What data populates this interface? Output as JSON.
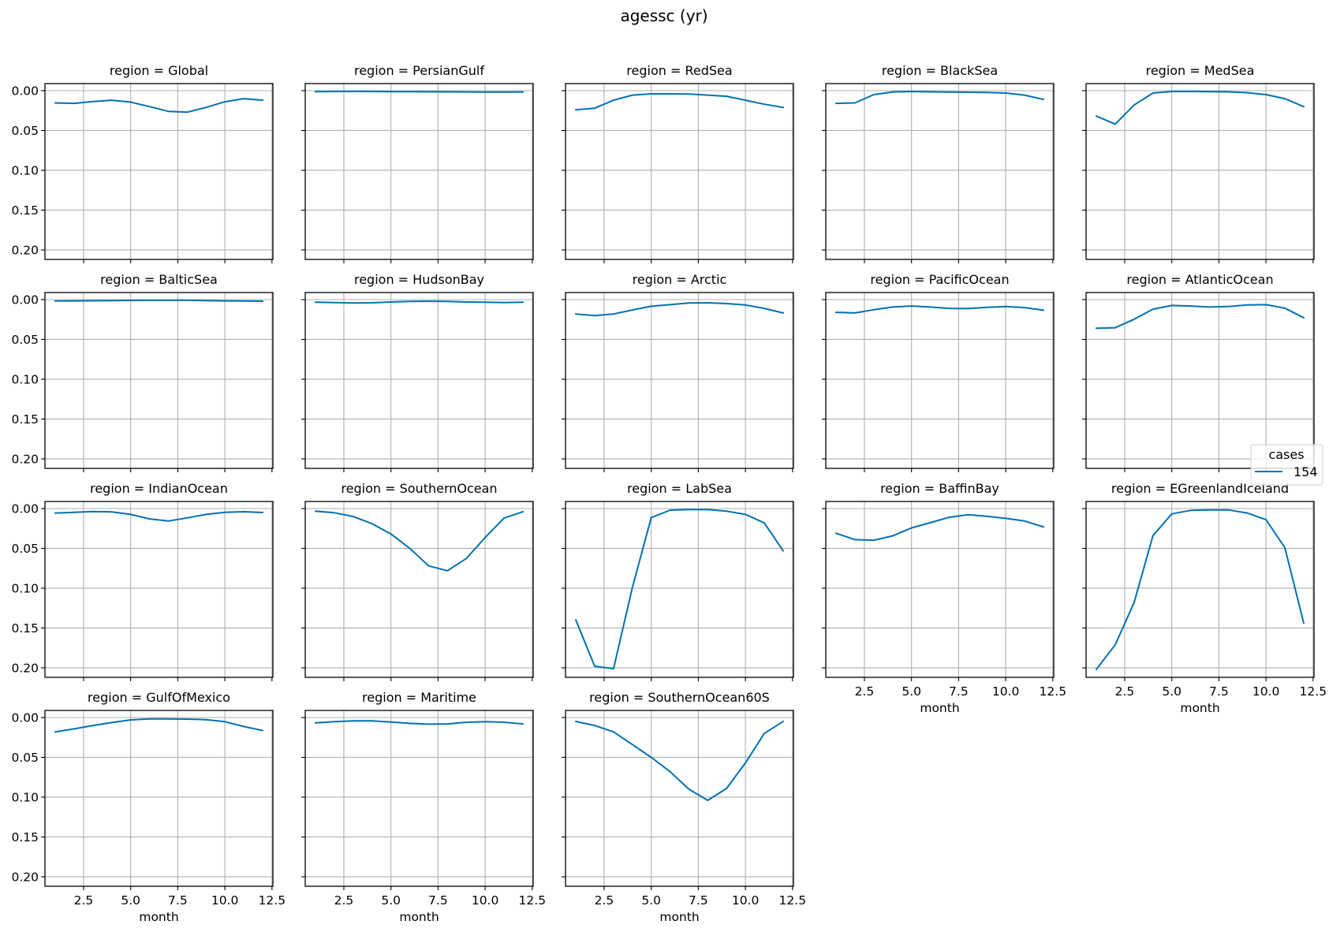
{
  "chart_data": {
    "type": "line",
    "title": "agessc (yr)",
    "layout": {
      "rows": 4,
      "cols": 5,
      "sharex": true,
      "sharey": true,
      "grid": true,
      "yaxis_inverted": true
    },
    "xlabel": "month",
    "ylabel": "",
    "xlim": [
      0.45,
      12.55
    ],
    "ylim": [
      -0.0089,
      0.2119
    ],
    "xticks": [
      2.5,
      5.0,
      7.5,
      10.0,
      12.5
    ],
    "xtick_labels": [
      "2.5",
      "5.0",
      "7.5",
      "10.0",
      "12.5"
    ],
    "yticks": [
      0.0,
      0.05,
      0.1,
      0.15,
      0.2
    ],
    "ytick_labels": [
      "0.00",
      "0.05",
      "0.10",
      "0.15",
      "0.20"
    ],
    "x": [
      1,
      2,
      3,
      4,
      5,
      6,
      7,
      8,
      9,
      10,
      11,
      12
    ],
    "legend": {
      "title": "cases",
      "position": "center right",
      "entries": [
        {
          "label": "154",
          "color": "#0072b2"
        }
      ]
    },
    "panels": [
      {
        "title": "region = Global",
        "series": [
          {
            "name": "154",
            "values": [
              0.0154,
              0.016,
              0.0137,
              0.012,
              0.0144,
              0.02,
              0.026,
              0.027,
              0.021,
              0.014,
              0.01,
              0.012
            ]
          }
        ]
      },
      {
        "title": "region = PersianGulf",
        "series": [
          {
            "name": "154",
            "values": [
              0.0012,
              0.001,
              0.0009,
              0.001,
              0.0012,
              0.0013,
              0.0014,
              0.0015,
              0.0016,
              0.0017,
              0.0018,
              0.0016
            ]
          }
        ]
      },
      {
        "title": "region = RedSea",
        "series": [
          {
            "name": "154",
            "values": [
              0.024,
              0.022,
              0.012,
              0.0056,
              0.004,
              0.004,
              0.0042,
              0.0056,
              0.007,
              0.012,
              0.017,
              0.021
            ]
          }
        ]
      },
      {
        "title": "region = BlackSea",
        "series": [
          {
            "name": "154",
            "values": [
              0.016,
              0.0154,
              0.005,
              0.0016,
              0.001,
              0.0015,
              0.0018,
              0.002,
              0.0022,
              0.003,
              0.0056,
              0.011
            ]
          }
        ]
      },
      {
        "title": "region = MedSea",
        "series": [
          {
            "name": "154",
            "values": [
              0.032,
              0.042,
              0.018,
              0.003,
              0.001,
              0.001,
              0.0012,
              0.0015,
              0.0025,
              0.005,
              0.01,
              0.02
            ]
          }
        ]
      },
      {
        "title": "region = BalticSea",
        "series": [
          {
            "name": "154",
            "values": [
              0.0018,
              0.0016,
              0.0014,
              0.0012,
              0.001,
              0.0008,
              0.0007,
              0.0008,
              0.0012,
              0.0016,
              0.0018,
              0.002
            ]
          }
        ]
      },
      {
        "title": "region = HudsonBay",
        "series": [
          {
            "name": "154",
            "values": [
              0.0033,
              0.0037,
              0.0043,
              0.004,
              0.003,
              0.0022,
              0.002,
              0.0023,
              0.003,
              0.0033,
              0.0037,
              0.0033
            ]
          }
        ]
      },
      {
        "title": "region = Arctic",
        "series": [
          {
            "name": "154",
            "values": [
              0.018,
              0.02,
              0.018,
              0.013,
              0.0083,
              0.0063,
              0.0043,
              0.004,
              0.005,
              0.0067,
              0.011,
              0.0167
            ]
          }
        ]
      },
      {
        "title": "region = PacificOcean",
        "series": [
          {
            "name": "154",
            "values": [
              0.016,
              0.0167,
              0.0127,
              0.0093,
              0.008,
              0.0093,
              0.011,
              0.0113,
              0.0097,
              0.0087,
              0.01,
              0.0133
            ]
          }
        ]
      },
      {
        "title": "region = AtlanticOcean",
        "series": [
          {
            "name": "154",
            "values": [
              0.036,
              0.0353,
              0.0247,
              0.012,
              0.0073,
              0.008,
              0.0093,
              0.0087,
              0.0067,
              0.0063,
              0.0107,
              0.0227
            ]
          }
        ]
      },
      {
        "title": "region = IndianOcean",
        "series": [
          {
            "name": "154",
            "values": [
              0.0057,
              0.0047,
              0.0037,
              0.0043,
              0.0073,
              0.013,
              0.0157,
              0.0117,
              0.0073,
              0.0047,
              0.004,
              0.005
            ]
          }
        ]
      },
      {
        "title": "region = SouthernOcean",
        "series": [
          {
            "name": "154",
            "values": [
              0.0033,
              0.0053,
              0.01,
              0.019,
              0.032,
              0.05,
              0.072,
              0.078,
              0.0627,
              0.0363,
              0.012,
              0.004
            ]
          }
        ]
      },
      {
        "title": "region = LabSea",
        "series": [
          {
            "name": "154",
            "values": [
              0.14,
              0.198,
              0.201,
              0.099,
              0.0113,
              0.002,
              0.0013,
              0.0013,
              0.0033,
              0.0073,
              0.018,
              0.053
            ]
          }
        ]
      },
      {
        "title": "region = BaffinBay",
        "series": [
          {
            "name": "154",
            "values": [
              0.031,
              0.039,
              0.0397,
              0.0343,
              0.0243,
              0.0177,
              0.011,
              0.0077,
              0.0097,
              0.0123,
              0.0157,
              0.023
            ]
          }
        ]
      },
      {
        "title": "region = EGreenlandIceland",
        "series": [
          {
            "name": "154",
            "values": [
              0.2017,
              0.171,
              0.118,
              0.034,
              0.0066,
              0.0023,
              0.0017,
              0.0017,
              0.0056,
              0.014,
              0.049,
              0.1436
            ]
          }
        ]
      },
      {
        "title": "region = GulfOfMexico",
        "series": [
          {
            "name": "154",
            "values": [
              0.018,
              0.0143,
              0.01,
              0.0063,
              0.003,
              0.0017,
              0.0017,
              0.002,
              0.0027,
              0.0053,
              0.0113,
              0.0163
            ]
          }
        ]
      },
      {
        "title": "region = Maritime",
        "series": [
          {
            "name": "154",
            "values": [
              0.0067,
              0.0053,
              0.0043,
              0.0043,
              0.0057,
              0.0073,
              0.0083,
              0.008,
              0.006,
              0.0053,
              0.006,
              0.008
            ]
          }
        ]
      },
      {
        "title": "region = SouthernOcean60S",
        "series": [
          {
            "name": "154",
            "values": [
              0.005,
              0.01,
              0.018,
              0.034,
              0.05,
              0.068,
              0.09,
              0.104,
              0.089,
              0.057,
              0.02,
              0.005
            ]
          }
        ]
      }
    ]
  },
  "colors": {
    "series": "#0072b2",
    "grid": "#b0b0b0",
    "axes": "#000000",
    "background": "#ffffff"
  }
}
